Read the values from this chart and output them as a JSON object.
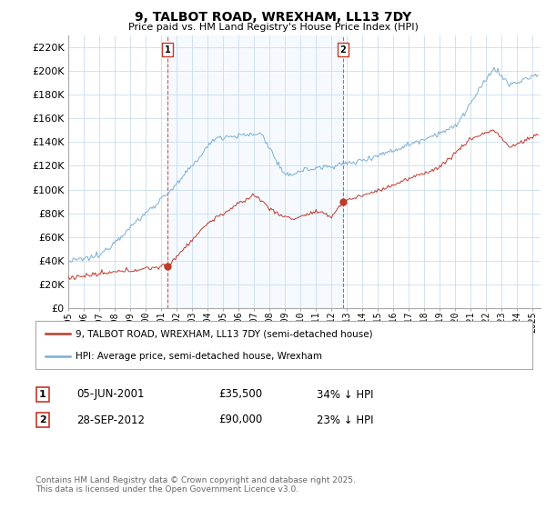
{
  "title": "9, TALBOT ROAD, WREXHAM, LL13 7DY",
  "subtitle": "Price paid vs. HM Land Registry's House Price Index (HPI)",
  "ylim": [
    0,
    230000
  ],
  "yticks": [
    0,
    20000,
    40000,
    60000,
    80000,
    100000,
    120000,
    140000,
    160000,
    180000,
    200000,
    220000
  ],
  "xlim_start": 1995.0,
  "xlim_end": 2025.5,
  "line1_color": "#c0392b",
  "line2_color": "#7aafd4",
  "vline1_color": "#c0392b",
  "vline2_color": "#c0392b",
  "shade_color": "#ddeeff",
  "marker1_date": 2001.42,
  "marker1_price": 35500,
  "marker2_date": 2012.74,
  "marker2_price": 90000,
  "legend_label1": "9, TALBOT ROAD, WREXHAM, LL13 7DY (semi-detached house)",
  "legend_label2": "HPI: Average price, semi-detached house, Wrexham",
  "annotation1_date": "05-JUN-2001",
  "annotation1_price": "£35,500",
  "annotation1_pct": "34% ↓ HPI",
  "annotation2_date": "28-SEP-2012",
  "annotation2_price": "£90,000",
  "annotation2_pct": "23% ↓ HPI",
  "footer": "Contains HM Land Registry data © Crown copyright and database right 2025.\nThis data is licensed under the Open Government Licence v3.0.",
  "background_color": "#ffffff",
  "grid_color": "#ccddee"
}
